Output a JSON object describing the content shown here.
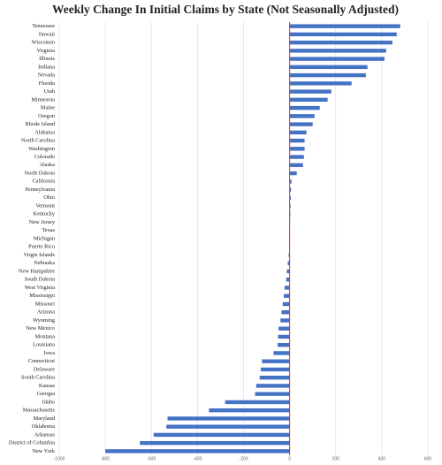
{
  "chart_data": {
    "type": "hbar",
    "title": "Weekly Change In Initial Claims by State (Not Seasonally Adjusted)",
    "categories": [
      "Tennessee",
      "Hawaii",
      "Wisconsin",
      "Virginia",
      "Illinois",
      "Indiana",
      "Nevada",
      "Florida",
      "Utah",
      "Minnesota",
      "Maine",
      "Oregon",
      "Rhode Island",
      "Alabama",
      "North Carolina",
      "Washington",
      "Colorado",
      "Alaska",
      "North Dakota",
      "California",
      "Pennsylvania",
      "Ohio",
      "Vermont",
      "Kentucky",
      "New Jersey",
      "Texas",
      "Michigan",
      "Puerto Rico",
      "Virgin Islands",
      "Nebraska",
      "New Hampshire",
      "South Dakota",
      "West Virginia",
      "Mississippi",
      "Missouri",
      "Arizona",
      "Wyoming",
      "New Mexico",
      "Montana",
      "Louisiana",
      "Iowa",
      "Connecticut",
      "Delaware",
      "South Carolina",
      "Kansas",
      "Georgia",
      "Idaho",
      "Massachusetts",
      "Maryland",
      "Oklahoma",
      "Arkansas",
      "District of Columbia",
      "New York"
    ],
    "values": [
      480,
      465,
      446,
      419,
      412,
      338,
      331,
      269,
      181,
      165,
      131,
      108,
      100,
      73,
      65,
      65,
      62,
      58,
      31,
      8,
      6,
      5,
      4,
      3,
      2,
      1,
      -1,
      -2,
      -4,
      -8,
      -12,
      -15,
      -22,
      -25,
      -30,
      -35,
      -40,
      -48,
      -50,
      -52,
      -70,
      -120,
      -125,
      -130,
      -145,
      -150,
      -280,
      -350,
      -530,
      -535,
      -590,
      -650,
      -800
    ],
    "color": "#4472c4",
    "zero_line_color": "#e03030",
    "xlim": [
      -1000,
      600
    ],
    "xticks": [
      -1000,
      -800,
      -600,
      -400,
      -200,
      0,
      200,
      400,
      600
    ],
    "grid": true
  }
}
